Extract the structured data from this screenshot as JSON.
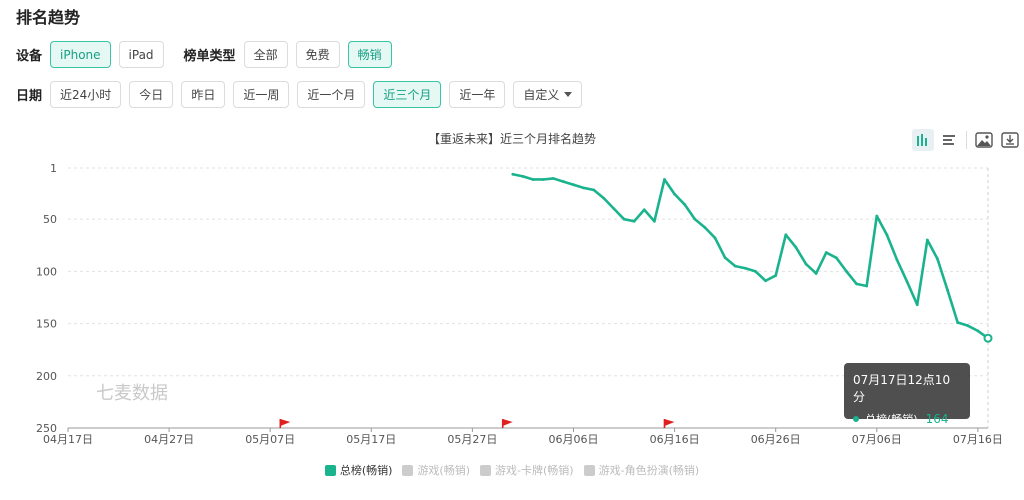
{
  "page_title": "排名趋势",
  "device": {
    "label": "设备",
    "options": [
      "iPhone",
      "iPad"
    ],
    "active": 0
  },
  "rank_type": {
    "label": "榜单类型",
    "options": [
      "全部",
      "免费",
      "畅销"
    ],
    "active": 2
  },
  "date": {
    "label": "日期",
    "options": [
      "近24小时",
      "今日",
      "昨日",
      "近一周",
      "近一个月",
      "近三个月",
      "近一年"
    ],
    "active": 5,
    "custom_label": "自定义"
  },
  "watermark": "七麦数据",
  "tooltip": {
    "title": "07月17日12点10分",
    "series": "总榜(畅销)",
    "value": "164"
  },
  "legend": [
    {
      "label": "总榜(畅销)",
      "on": true
    },
    {
      "label": "游戏(畅销)",
      "on": false
    },
    {
      "label": "游戏-卡牌(畅销)",
      "on": false
    },
    {
      "label": "游戏-角色扮演(畅销)",
      "on": false
    }
  ],
  "toolbar_icons": [
    "bar-chart-icon",
    "list-icon",
    "image-icon",
    "download-icon"
  ],
  "colors": {
    "line": "#1ab38e",
    "accent": "#16a085",
    "flag": "#e02020"
  },
  "chart_data": {
    "type": "line",
    "title": "【重返未来】近三个月排名趋势",
    "xlabel": "",
    "ylabel": "",
    "x_start": "04月17日",
    "x_end": "07月17日",
    "xticks": [
      "04月17日",
      "04月27日",
      "05月07日",
      "05月17日",
      "05月27日",
      "06月06日",
      "06月16日",
      "06月26日",
      "07月06日",
      "07月16日"
    ],
    "y_ticks": [
      1,
      50,
      100,
      150,
      200,
      250
    ],
    "y_inverted": true,
    "ylim": [
      1,
      250
    ],
    "grid": true,
    "legend_position": "bottom",
    "events": [
      "05月08日",
      "05月30日",
      "06月15日"
    ],
    "series": [
      {
        "name": "总榜(畅销)",
        "x": [
          "05月31日",
          "06月01日",
          "06月02日",
          "06月03日",
          "06月04日",
          "06月05日",
          "06月06日",
          "06月07日",
          "06月08日",
          "06月09日",
          "06月10日",
          "06月11日",
          "06月12日",
          "06月13日",
          "06月14日",
          "06月15日",
          "06月16日",
          "06月17日",
          "06月18日",
          "06月19日",
          "06月20日",
          "06月21日",
          "06月22日",
          "06月23日",
          "06月24日",
          "06月25日",
          "06月26日",
          "06月27日",
          "06月28日",
          "06月29日",
          "06月30日",
          "07月01日",
          "07月02日",
          "07月03日",
          "07月04日",
          "07月05日",
          "07月06日",
          "07月07日",
          "07月08日",
          "07月09日",
          "07月10日",
          "07月11日",
          "07月12日",
          "07月13日",
          "07月14日",
          "07月15日",
          "07月16日",
          "07月17日"
        ],
        "values": [
          7,
          9,
          12,
          12,
          11,
          14,
          17,
          20,
          22,
          30,
          40,
          50,
          52,
          41,
          52,
          12,
          26,
          36,
          50,
          58,
          68,
          87,
          95,
          97,
          100,
          109,
          104,
          65,
          77,
          93,
          102,
          82,
          87,
          100,
          112,
          114,
          47,
          65,
          89,
          110,
          132,
          70,
          88,
          118,
          149,
          152,
          157,
          164
        ]
      }
    ]
  }
}
